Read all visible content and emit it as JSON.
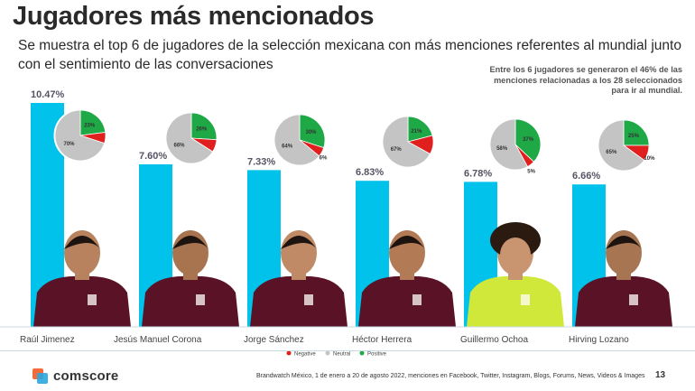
{
  "header": {
    "title": "Jugadores más mencionados",
    "subtitle": "Se muestra el top 6 de jugadores de la selección mexicana con más menciones referentes al mundial junto con el sentimiento de las conversaciones",
    "note": "Entre los 6 jugadores se generaron el 46% de las menciones relacionadas a los 28 seleccionados para ir al mundial."
  },
  "colors": {
    "bar": "#00c2ea",
    "negative": "#e0201f",
    "neutral": "#c4c4c4",
    "positive": "#1fa846",
    "bar_label": "#555566"
  },
  "chart_data": {
    "type": "bar",
    "categories": [
      "Raúl Jimenez",
      "Jesús Manuel Corona",
      "Jorge Sánchez",
      "Héctor Herrera",
      "Guillermo Ochoa",
      "Hirving Lozano"
    ],
    "values": [
      10.47,
      7.6,
      7.33,
      6.83,
      6.78,
      6.66
    ],
    "value_labels": [
      "10.47%",
      "7.60%",
      "7.33%",
      "6.83%",
      "6.78%",
      "6.66%"
    ],
    "unit": "%",
    "sentiment": [
      {
        "positive": 23,
        "negative": 7,
        "neutral": 70,
        "labels": {
          "positive": "23%",
          "negative": "",
          "neutral": "70%"
        }
      },
      {
        "positive": 26,
        "negative": 8,
        "neutral": 66,
        "labels": {
          "positive": "26%",
          "negative": "",
          "neutral": "66%"
        }
      },
      {
        "positive": 30,
        "negative": 6,
        "neutral": 64,
        "labels": {
          "positive": "30%",
          "negative": "6%",
          "neutral": "64%"
        }
      },
      {
        "positive": 21,
        "negative": 12,
        "neutral": 67,
        "labels": {
          "positive": "21%",
          "negative": "",
          "neutral": "67%"
        }
      },
      {
        "positive": 37,
        "negative": 5,
        "neutral": 58,
        "labels": {
          "positive": "37%",
          "negative": "5%",
          "neutral": "58%"
        }
      },
      {
        "positive": 25,
        "negative": 10,
        "neutral": 65,
        "labels": {
          "positive": "25%",
          "negative": "10%",
          "neutral": "65%"
        }
      }
    ],
    "legend": {
      "negative": "Negative",
      "neutral": "Neutral",
      "positive": "Positive"
    },
    "legend_placement": "bottom-right",
    "grid": false
  },
  "footer": {
    "brand": "comscore",
    "source": "Brandwatch México, 1 de enero a 20 de agosto 2022, menciones en Facebook, Twitter, Instagram, Blogs, Forums, News, Videos & Images",
    "page": "13"
  }
}
